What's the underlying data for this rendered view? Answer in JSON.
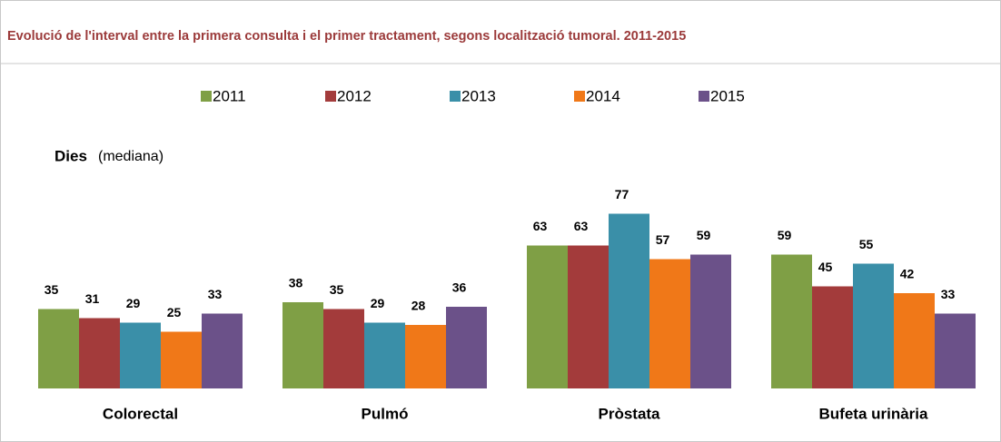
{
  "chart_data": {
    "type": "bar",
    "title": "Evolució de l'interval entre la primera consulta i el primer tractament, segons localització tumoral. 2011-2015",
    "y_axis_title": "Dies",
    "y_axis_subtitle": "(mediana)",
    "categories": [
      "Colorectal",
      "Pulmó",
      "Pròstata",
      "Bufeta urinària"
    ],
    "series": [
      {
        "name": "2011",
        "color": "#7f9f45",
        "values": [
          35,
          38,
          63,
          59
        ]
      },
      {
        "name": "2012",
        "color": "#a33b3b",
        "values": [
          31,
          35,
          63,
          45
        ]
      },
      {
        "name": "2013",
        "color": "#3a8fa8",
        "values": [
          29,
          29,
          77,
          55
        ]
      },
      {
        "name": "2014",
        "color": "#f07818",
        "values": [
          25,
          28,
          57,
          42
        ]
      },
      {
        "name": "2015",
        "color": "#6b5189",
        "values": [
          33,
          36,
          59,
          33
        ]
      }
    ],
    "legend": "top",
    "grid": false
  }
}
